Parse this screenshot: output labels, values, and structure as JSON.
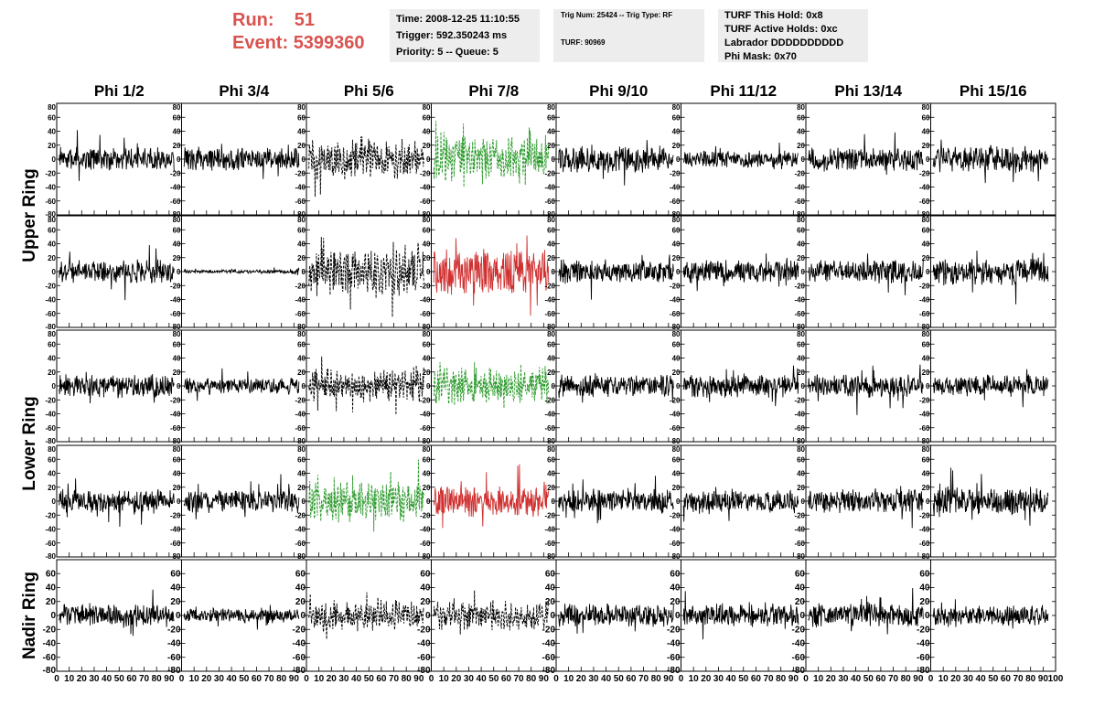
{
  "header": {
    "run_label": "Run:",
    "run_value": "51",
    "event_label": "Event:",
    "event_value": "5399360",
    "time": "Time: 2008-12-25 11:10:55",
    "trigger": "Trigger: 592.350243 ms",
    "priority": "Priority: 5 -- Queue: 5",
    "trig_num": "Trig Num: 25424 -- Trig Type: RF",
    "turf": "TURF: 90969",
    "turf_hold": "TURF This Hold: 0x8",
    "turf_active": "TURF Active Holds: 0xc",
    "labrador": "Labrador DDDDDDDDDD",
    "phi_mask": "Phi Mask: 0x70"
  },
  "colors": {
    "header_red": "#d9534f",
    "trace_black": "#000000",
    "trace_green": "#2a9a2a",
    "trace_red": "#d03030",
    "info_bg": "#ededed"
  },
  "chart_data": {
    "type": "line",
    "columns": [
      "Phi 1/2",
      "Phi 3/4",
      "Phi 5/6",
      "Phi 7/8",
      "Phi 9/10",
      "Phi 11/12",
      "Phi 13/14",
      "Phi 15/16"
    ],
    "rings": [
      {
        "label": "Upper Ring",
        "rows": [
          0,
          1
        ]
      },
      {
        "label": "Lower Ring",
        "rows": [
          2,
          3
        ]
      },
      {
        "label": "Nadir Ring",
        "rows": [
          4
        ]
      }
    ],
    "xlim": [
      0,
      100
    ],
    "ylim": [
      -80,
      80
    ],
    "y_ticks": [
      -80,
      -60,
      -40,
      -20,
      0,
      20,
      40,
      60,
      80
    ],
    "x_tick_labels": [
      "0",
      "10",
      "20",
      "30",
      "40",
      "50",
      "60",
      "70",
      "80",
      "90",
      "100"
    ],
    "styles": {
      "black": {
        "color": "#000000",
        "dashed": false
      },
      "dash": {
        "color": "#000000",
        "dashed": true
      },
      "green": {
        "color": "#2a9a2a",
        "dashed": true
      },
      "red": {
        "color": "#d03030",
        "dashed": false
      }
    },
    "panels": [
      [
        "black",
        "black",
        "dash",
        "green",
        "black",
        "black",
        "black",
        "black"
      ],
      [
        "black",
        "black",
        "dash",
        "red",
        "black",
        "black",
        "black",
        "black"
      ],
      [
        "black",
        "black",
        "dash",
        "green",
        "black",
        "black",
        "black",
        "black"
      ],
      [
        "black",
        "black",
        "green",
        "red",
        "black",
        "black",
        "black",
        "black"
      ],
      [
        "black",
        "black",
        "dash",
        "dash",
        "black",
        "black",
        "black",
        "black"
      ]
    ],
    "amplitude": [
      [
        13,
        13,
        20,
        24,
        15,
        9,
        13,
        15
      ],
      [
        13,
        2,
        26,
        26,
        13,
        13,
        13,
        15
      ],
      [
        13,
        9,
        16,
        20,
        13,
        13,
        13,
        12
      ],
      [
        13,
        13,
        21,
        18,
        13,
        13,
        14,
        16
      ],
      [
        13,
        8,
        15,
        15,
        13,
        13,
        13,
        11
      ]
    ]
  }
}
